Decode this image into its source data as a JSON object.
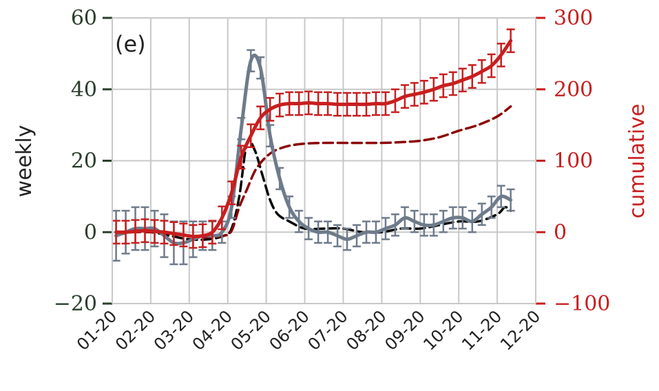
{
  "panel_label": "(e)",
  "colors": {
    "left_axis": "#2a3f2a",
    "right_axis": "#c81e1e",
    "weekly_line": "#6e7b8b",
    "weekly_dashed": "#000000",
    "cumulative_line": "#c81e1e",
    "cumulative_dashed": "#8b0000",
    "grid": "#c8c8c8"
  },
  "chart_data": {
    "type": "line",
    "xlabel": "",
    "ylabel_left": "weekly",
    "ylabel_right": "cumulative",
    "x_ticks": [
      "01-20",
      "02-20",
      "03-20",
      "04-20",
      "05-20",
      "06-20",
      "07-20",
      "08-20",
      "09-20",
      "10-20",
      "11-20",
      "12-20"
    ],
    "y_left_lim": [
      -20,
      60
    ],
    "y_left_ticks": [
      "−20",
      "0",
      "20",
      "40",
      "60"
    ],
    "y_left_tick_values": [
      -20,
      0,
      20,
      40,
      60
    ],
    "y_right_lim": [
      -100,
      300
    ],
    "y_right_ticks": [
      "−100",
      "0",
      "100",
      "200",
      "300"
    ],
    "y_right_tick_values": [
      -100,
      0,
      100,
      200,
      300
    ],
    "grid": true,
    "series": [
      {
        "axis": "left",
        "style": "solid-errorbar",
        "x": [
          0.1,
          0.35,
          0.6,
          0.85,
          1.1,
          1.35,
          1.6,
          1.85,
          2.1,
          2.35,
          2.6,
          2.85,
          3.1,
          3.35,
          3.6,
          3.85,
          4.1,
          4.35,
          4.6,
          4.85,
          5.1,
          5.35,
          5.6,
          5.85,
          6.1,
          6.35,
          6.6,
          6.85,
          7.1,
          7.35,
          7.6,
          7.85,
          8.1,
          8.35,
          8.6,
          8.85,
          9.1,
          9.35,
          9.6,
          9.85,
          10.1,
          10.35
        ],
        "y": [
          -1,
          0,
          1,
          1,
          1,
          -1,
          -3,
          -3,
          -2,
          -1,
          -1,
          0,
          7,
          29,
          48,
          46,
          27,
          15,
          7,
          3,
          1,
          0,
          0,
          -1,
          -2,
          -1,
          0,
          0,
          1,
          2,
          4,
          3,
          2,
          2,
          3,
          4,
          4,
          3,
          5,
          7,
          10,
          9
        ],
        "err": [
          7,
          6,
          6,
          6,
          5,
          6,
          6,
          6,
          5,
          4,
          4,
          3,
          3,
          3,
          3,
          3,
          3,
          3,
          3,
          3,
          3,
          3,
          3,
          3,
          3,
          3,
          3,
          3,
          3,
          3,
          3,
          3,
          3,
          3,
          3,
          3,
          3,
          3,
          3,
          3,
          3,
          3
        ]
      },
      {
        "axis": "left",
        "style": "dashed",
        "x": [
          0.1,
          0.5,
          1.0,
          1.5,
          2.0,
          2.5,
          2.9,
          3.1,
          3.3,
          3.5,
          3.7,
          3.9,
          4.1,
          4.3,
          4.6,
          5.0,
          5.5,
          6.0,
          6.5,
          7.0,
          7.5,
          8.0,
          8.5,
          9.0,
          9.5,
          10.0,
          10.2,
          10.35
        ],
        "y": [
          -1,
          0,
          0,
          -1,
          -2,
          -2,
          -1,
          1,
          10,
          25,
          23,
          16,
          9,
          5,
          3,
          1,
          1,
          1,
          0,
          0,
          1,
          1,
          2,
          3,
          3,
          5,
          7,
          6
        ]
      },
      {
        "axis": "right",
        "style": "solid-errorbar",
        "x": [
          0.1,
          0.35,
          0.6,
          0.85,
          1.1,
          1.35,
          1.6,
          1.85,
          2.1,
          2.35,
          2.6,
          2.85,
          3.1,
          3.35,
          3.6,
          3.85,
          4.1,
          4.35,
          4.6,
          4.85,
          5.1,
          5.35,
          5.6,
          5.85,
          6.1,
          6.35,
          6.6,
          6.85,
          7.1,
          7.35,
          7.6,
          7.85,
          8.1,
          8.35,
          8.6,
          8.85,
          9.1,
          9.35,
          9.6,
          9.85,
          10.1,
          10.35
        ],
        "y": [
          0,
          0,
          1,
          2,
          1,
          0,
          -2,
          -4,
          -6,
          -5,
          0,
          20,
          55,
          105,
          135,
          160,
          172,
          178,
          180,
          180,
          181,
          180,
          180,
          179,
          179,
          179,
          179,
          180,
          180,
          184,
          190,
          193,
          196,
          200,
          205,
          208,
          213,
          218,
          225,
          233,
          248,
          268
        ],
        "err": [
          16,
          16,
          16,
          16,
          16,
          16,
          16,
          16,
          16,
          16,
          16,
          16,
          16,
          16,
          16,
          16,
          16,
          16,
          16,
          16,
          16,
          16,
          16,
          16,
          16,
          16,
          16,
          16,
          16,
          16,
          16,
          16,
          16,
          16,
          16,
          16,
          16,
          16,
          16,
          16,
          16,
          16
        ]
      },
      {
        "axis": "right",
        "style": "dashed",
        "x": [
          0.1,
          0.5,
          1.0,
          1.5,
          2.0,
          2.5,
          2.9,
          3.1,
          3.3,
          3.5,
          3.7,
          3.9,
          4.1,
          4.3,
          4.6,
          5.0,
          5.5,
          6.0,
          6.5,
          7.0,
          7.5,
          8.0,
          8.5,
          9.0,
          9.5,
          10.0,
          10.35
        ],
        "y": [
          0,
          0,
          0,
          -2,
          -5,
          -7,
          -5,
          2,
          35,
          60,
          85,
          100,
          110,
          116,
          121,
          124,
          125,
          125,
          125,
          125,
          126,
          128,
          133,
          142,
          150,
          162,
          176
        ]
      }
    ]
  }
}
